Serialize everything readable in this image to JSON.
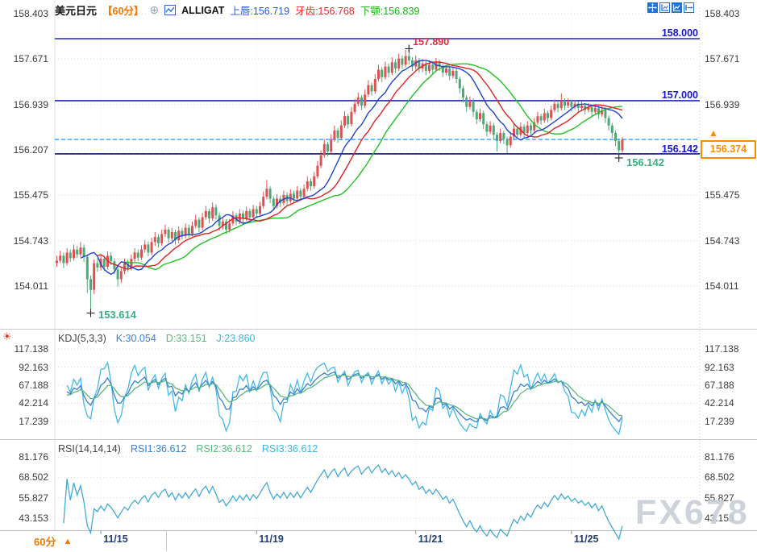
{
  "header": {
    "title": "美元日元",
    "period": "【60分】",
    "add_icon": "⊕",
    "indicator": "ALLIGAT",
    "lips": "上唇:156.719",
    "teeth": "牙齿:156.768",
    "jaw": "下颚:156.839"
  },
  "toolbar": {
    "icons": [
      "crosshair-tool",
      "axis-scale",
      "auto-scroll",
      "detach-window"
    ]
  },
  "levels": {
    "r1_label": "158.000",
    "r2_label": "157.000",
    "low_line_label": "156.142",
    "current_price": "156.374",
    "current_arrow": "▲"
  },
  "annotations": {
    "peak": "157.890",
    "spike_low": "153.614",
    "last_low": "156.142"
  },
  "kdj_header": {
    "name": "KDJ(5,3,3)",
    "k": "K:30.054",
    "d": "D:33.151",
    "j": "J:23.860"
  },
  "rsi_header": {
    "name": "RSI(14,14,14)",
    "r1": "RSI1:36.612",
    "r2": "RSI2:36.612",
    "r3": "RSI3:36.612"
  },
  "footer": {
    "period": "60分",
    "arrow": "▲"
  },
  "watermark": "FX678",
  "colors": {
    "up_candle": "#e05050",
    "down_candle": "#4fa878",
    "alligator_lips": "#2244cc",
    "alligator_teeth": "#e02222",
    "alligator_jaw": "#22c022",
    "level_line": "#2121cc",
    "low_line": "#12127f",
    "current_dashed": "#2e9bff",
    "accent_orange": "#ff8a00",
    "kdj_k": "#3a7fd0",
    "kdj_d": "#56b87e",
    "kdj_j": "#45b8e8",
    "rsi_line": "#45a9d6",
    "grid": "#dcdcdc"
  },
  "chart_data": {
    "type": "candlestick",
    "title": "美元日元 60分 (USD/JPY 60-minute)",
    "main_axis_levels": [
      158.403,
      157.671,
      156.939,
      156.207,
      155.475,
      154.743,
      154.011
    ],
    "kdj_axis_levels": [
      117.138,
      92.163,
      67.188,
      42.214,
      17.239
    ],
    "rsi_axis_levels": [
      81.176,
      68.502,
      55.827,
      43.153
    ],
    "x_ticks": [
      {
        "index": 13,
        "label": "11/15"
      },
      {
        "index": 59,
        "label": "11/19"
      },
      {
        "index": 106,
        "label": "11/21"
      },
      {
        "index": 152,
        "label": "11/25"
      }
    ],
    "resistance_levels": [
      158.0,
      157.0
    ],
    "low_level": 156.142,
    "current_level": 156.374,
    "marks": [
      {
        "index": 104,
        "price": 157.89,
        "dy": 4
      },
      {
        "index": 10,
        "price": 153.614,
        "dy": 3
      },
      {
        "index": 166,
        "price": 156.142,
        "dy": 5
      }
    ],
    "overlays": [
      {
        "name": "alligator_lips",
        "window": 5,
        "shift": 3,
        "value": 156.719
      },
      {
        "name": "alligator_teeth",
        "window": 8,
        "shift": 5,
        "value": 156.768
      },
      {
        "name": "alligator_jaw",
        "window": 13,
        "shift": 8,
        "value": 156.839
      }
    ],
    "sub_indicators": [
      {
        "name": "KDJ",
        "params": [
          5,
          3,
          3
        ],
        "k": 30.054,
        "d": 33.151,
        "j": 23.86
      },
      {
        "name": "RSI",
        "params": [
          14,
          14,
          14
        ],
        "rsi1": 36.612,
        "rsi2": 36.612,
        "rsi3": 36.612
      }
    ],
    "candles": [
      [
        154.38,
        154.5,
        154.32,
        154.42
      ],
      [
        154.42,
        154.58,
        154.38,
        154.5
      ],
      [
        154.5,
        154.55,
        154.3,
        154.38
      ],
      [
        154.38,
        154.62,
        154.34,
        154.55
      ],
      [
        154.55,
        154.6,
        154.4,
        154.46
      ],
      [
        154.46,
        154.68,
        154.42,
        154.6
      ],
      [
        154.6,
        154.66,
        154.46,
        154.52
      ],
      [
        154.52,
        154.72,
        154.48,
        154.63
      ],
      [
        154.63,
        154.68,
        154.4,
        154.48
      ],
      [
        154.48,
        154.52,
        153.9,
        154.12
      ],
      [
        154.12,
        154.18,
        153.614,
        153.95
      ],
      [
        153.95,
        154.44,
        153.88,
        154.38
      ],
      [
        154.38,
        154.46,
        154.24,
        154.31
      ],
      [
        154.31,
        154.52,
        154.26,
        154.45
      ],
      [
        154.45,
        154.5,
        154.25,
        154.32
      ],
      [
        154.32,
        154.57,
        154.28,
        154.5
      ],
      [
        154.5,
        154.56,
        154.35,
        154.41
      ],
      [
        154.41,
        154.46,
        154.2,
        154.28
      ],
      [
        154.28,
        154.33,
        154.0,
        154.12
      ],
      [
        154.12,
        154.32,
        154.06,
        154.25
      ],
      [
        154.25,
        154.45,
        154.2,
        154.38
      ],
      [
        154.38,
        154.44,
        154.24,
        154.3
      ],
      [
        154.3,
        154.52,
        154.26,
        154.45
      ],
      [
        154.45,
        154.62,
        154.4,
        154.55
      ],
      [
        154.55,
        154.6,
        154.41,
        154.47
      ],
      [
        154.47,
        154.67,
        154.43,
        154.6
      ],
      [
        154.6,
        154.75,
        154.55,
        154.68
      ],
      [
        154.68,
        154.73,
        154.49,
        154.55
      ],
      [
        154.55,
        154.79,
        154.51,
        154.72
      ],
      [
        154.72,
        154.88,
        154.66,
        154.8
      ],
      [
        154.8,
        154.85,
        154.63,
        154.7
      ],
      [
        154.7,
        154.92,
        154.66,
        154.85
      ],
      [
        154.85,
        155.0,
        154.8,
        154.92
      ],
      [
        154.92,
        154.96,
        154.71,
        154.78
      ],
      [
        154.78,
        154.95,
        154.73,
        154.88
      ],
      [
        154.88,
        154.92,
        154.68,
        154.75
      ],
      [
        154.75,
        154.97,
        154.7,
        154.9
      ],
      [
        154.9,
        154.95,
        154.76,
        154.82
      ],
      [
        154.82,
        155.02,
        154.78,
        154.95
      ],
      [
        154.95,
        155.0,
        154.79,
        154.85
      ],
      [
        154.85,
        155.05,
        154.81,
        154.98
      ],
      [
        154.98,
        155.16,
        154.94,
        155.08
      ],
      [
        155.08,
        155.12,
        154.88,
        154.95
      ],
      [
        154.95,
        155.19,
        154.91,
        155.12
      ],
      [
        155.12,
        155.3,
        155.08,
        155.22
      ],
      [
        155.22,
        155.26,
        155.02,
        155.1
      ],
      [
        155.1,
        155.36,
        155.06,
        155.28
      ],
      [
        155.28,
        155.33,
        155.08,
        155.15
      ],
      [
        155.15,
        155.2,
        154.9,
        154.98
      ],
      [
        154.98,
        155.12,
        154.92,
        155.05
      ],
      [
        155.05,
        155.09,
        154.85,
        154.92
      ],
      [
        154.92,
        155.09,
        154.87,
        155.02
      ],
      [
        155.02,
        155.22,
        154.98,
        155.15
      ],
      [
        155.15,
        155.19,
        154.99,
        155.05
      ],
      [
        155.05,
        155.25,
        155.01,
        155.18
      ],
      [
        155.18,
        155.23,
        155.03,
        155.1
      ],
      [
        155.1,
        155.29,
        155.06,
        155.22
      ],
      [
        155.22,
        155.26,
        155.05,
        155.12
      ],
      [
        155.12,
        155.32,
        155.08,
        155.25
      ],
      [
        155.25,
        155.3,
        155.11,
        155.18
      ],
      [
        155.18,
        155.37,
        155.14,
        155.3
      ],
      [
        155.3,
        155.53,
        155.26,
        155.45
      ],
      [
        155.45,
        155.72,
        155.41,
        155.58
      ],
      [
        155.58,
        155.62,
        155.35,
        155.42
      ],
      [
        155.42,
        155.46,
        155.23,
        155.3
      ],
      [
        155.3,
        155.49,
        155.26,
        155.42
      ],
      [
        155.42,
        155.47,
        155.28,
        155.35
      ],
      [
        155.35,
        155.55,
        155.31,
        155.48
      ],
      [
        155.48,
        155.52,
        155.31,
        155.38
      ],
      [
        155.38,
        155.57,
        155.34,
        155.5
      ],
      [
        155.5,
        155.55,
        155.35,
        155.42
      ],
      [
        155.42,
        155.62,
        155.38,
        155.55
      ],
      [
        155.55,
        155.59,
        155.38,
        155.45
      ],
      [
        155.45,
        155.65,
        155.41,
        155.58
      ],
      [
        155.58,
        155.78,
        155.54,
        155.7
      ],
      [
        155.7,
        155.75,
        155.55,
        155.62
      ],
      [
        155.62,
        155.85,
        155.58,
        155.78
      ],
      [
        155.78,
        156.03,
        155.74,
        155.95
      ],
      [
        155.95,
        156.2,
        155.91,
        156.12
      ],
      [
        156.12,
        156.38,
        156.08,
        156.3
      ],
      [
        156.3,
        156.34,
        156.1,
        156.18
      ],
      [
        156.18,
        156.46,
        156.14,
        156.38
      ],
      [
        156.38,
        156.6,
        156.34,
        156.52
      ],
      [
        156.52,
        156.56,
        156.32,
        156.4
      ],
      [
        156.4,
        156.68,
        156.36,
        156.6
      ],
      [
        156.6,
        156.83,
        156.56,
        156.75
      ],
      [
        156.75,
        156.79,
        156.55,
        156.62
      ],
      [
        156.62,
        156.9,
        156.58,
        156.82
      ],
      [
        156.82,
        157.03,
        156.78,
        156.95
      ],
      [
        156.95,
        157.13,
        156.91,
        157.05
      ],
      [
        157.05,
        157.09,
        156.85,
        156.92
      ],
      [
        156.92,
        157.18,
        156.88,
        157.1
      ],
      [
        157.1,
        157.33,
        157.06,
        157.25
      ],
      [
        157.25,
        157.29,
        157.08,
        157.15
      ],
      [
        157.15,
        157.43,
        157.11,
        157.35
      ],
      [
        157.35,
        157.58,
        157.31,
        157.5
      ],
      [
        157.5,
        157.54,
        157.3,
        157.38
      ],
      [
        157.38,
        157.63,
        157.34,
        157.55
      ],
      [
        157.55,
        157.6,
        157.38,
        157.45
      ],
      [
        157.45,
        157.7,
        157.41,
        157.62
      ],
      [
        157.62,
        157.67,
        157.45,
        157.52
      ],
      [
        157.52,
        157.76,
        157.48,
        157.68
      ],
      [
        157.68,
        157.73,
        157.51,
        157.58
      ],
      [
        157.58,
        157.82,
        157.54,
        157.72
      ],
      [
        157.72,
        157.89,
        157.58,
        157.65
      ],
      [
        157.65,
        157.7,
        157.48,
        157.55
      ],
      [
        157.55,
        157.73,
        157.5,
        157.65
      ],
      [
        157.65,
        157.69,
        157.45,
        157.52
      ],
      [
        157.52,
        157.67,
        157.46,
        157.6
      ],
      [
        157.6,
        157.64,
        157.41,
        157.48
      ],
      [
        157.48,
        157.65,
        157.44,
        157.58
      ],
      [
        157.58,
        157.62,
        157.43,
        157.5
      ],
      [
        157.5,
        157.69,
        157.46,
        157.62
      ],
      [
        157.62,
        157.66,
        157.48,
        157.55
      ],
      [
        157.55,
        157.59,
        157.38,
        157.45
      ],
      [
        157.45,
        157.58,
        157.41,
        157.52
      ],
      [
        157.52,
        157.56,
        157.33,
        157.4
      ],
      [
        157.4,
        157.54,
        157.36,
        157.48
      ],
      [
        157.48,
        157.52,
        157.28,
        157.35
      ],
      [
        157.35,
        157.39,
        157.12,
        157.2
      ],
      [
        157.2,
        157.24,
        156.97,
        157.05
      ],
      [
        157.05,
        157.09,
        156.82,
        156.9
      ],
      [
        156.9,
        157.07,
        156.86,
        157.0
      ],
      [
        157.0,
        157.04,
        156.74,
        156.82
      ],
      [
        156.82,
        156.86,
        156.62,
        156.7
      ],
      [
        156.7,
        156.87,
        156.66,
        156.8
      ],
      [
        156.8,
        156.84,
        156.54,
        156.62
      ],
      [
        156.62,
        156.66,
        156.42,
        156.5
      ],
      [
        156.5,
        156.67,
        156.46,
        156.6
      ],
      [
        156.6,
        156.64,
        156.37,
        156.45
      ],
      [
        156.45,
        156.49,
        156.18,
        156.35
      ],
      [
        156.35,
        156.55,
        156.31,
        156.48
      ],
      [
        156.48,
        156.52,
        156.3,
        156.38
      ],
      [
        156.38,
        156.42,
        156.15,
        156.28
      ],
      [
        156.28,
        156.49,
        156.24,
        156.42
      ],
      [
        156.42,
        156.62,
        156.38,
        156.55
      ],
      [
        156.55,
        156.59,
        156.38,
        156.45
      ],
      [
        156.45,
        156.65,
        156.41,
        156.58
      ],
      [
        156.58,
        156.62,
        156.41,
        156.48
      ],
      [
        156.48,
        156.67,
        156.44,
        156.6
      ],
      [
        156.6,
        156.64,
        156.45,
        156.52
      ],
      [
        156.52,
        156.72,
        156.48,
        156.65
      ],
      [
        156.65,
        156.82,
        156.61,
        156.75
      ],
      [
        156.75,
        156.79,
        156.61,
        156.68
      ],
      [
        156.68,
        156.87,
        156.64,
        156.8
      ],
      [
        156.8,
        156.84,
        156.65,
        156.72
      ],
      [
        156.72,
        156.92,
        156.68,
        156.85
      ],
      [
        156.85,
        157.02,
        156.81,
        156.95
      ],
      [
        156.95,
        156.99,
        156.81,
        156.88
      ],
      [
        156.88,
        157.12,
        156.84,
        157.0
      ],
      [
        157.0,
        157.04,
        156.85,
        156.92
      ],
      [
        156.92,
        157.04,
        156.88,
        156.98
      ],
      [
        156.98,
        157.02,
        156.83,
        156.9
      ],
      [
        156.9,
        157.01,
        156.86,
        156.95
      ],
      [
        156.95,
        156.99,
        156.81,
        156.88
      ],
      [
        156.88,
        156.98,
        156.84,
        156.92
      ],
      [
        156.92,
        156.96,
        156.78,
        156.85
      ],
      [
        156.85,
        156.96,
        156.81,
        156.9
      ],
      [
        156.9,
        156.94,
        156.75,
        156.82
      ],
      [
        156.82,
        156.94,
        156.78,
        156.88
      ],
      [
        156.88,
        156.92,
        156.71,
        156.78
      ],
      [
        156.78,
        156.91,
        156.74,
        156.85
      ],
      [
        156.85,
        156.89,
        156.64,
        156.72
      ],
      [
        156.72,
        156.76,
        156.52,
        156.6
      ],
      [
        156.6,
        156.64,
        156.4,
        156.48
      ],
      [
        156.48,
        156.52,
        156.27,
        156.35
      ],
      [
        156.35,
        156.39,
        156.142,
        156.2
      ],
      [
        156.2,
        156.41,
        156.16,
        156.374
      ]
    ]
  }
}
